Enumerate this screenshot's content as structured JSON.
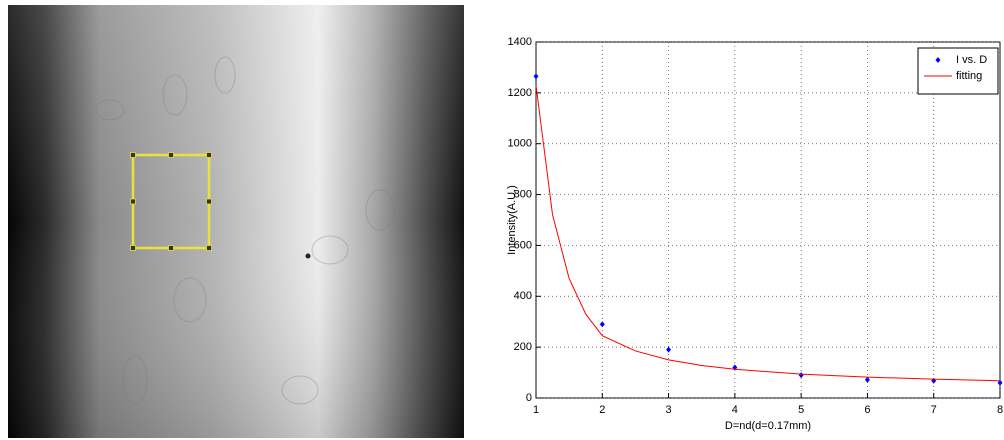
{
  "chart_data": {
    "type": "scatter",
    "xlabel": "D=nd(d=0.17mm)",
    "ylabel": "Intensity(A.U.)",
    "xlim": [
      1,
      8
    ],
    "ylim": [
      0,
      1400
    ],
    "xticks": [
      1,
      2,
      3,
      4,
      5,
      6,
      7,
      8
    ],
    "yticks": [
      0,
      200,
      400,
      600,
      800,
      1000,
      1200,
      1400
    ],
    "grid": true,
    "legend": "top-right",
    "series": [
      {
        "name": "I vs. D",
        "color": "#0000ff",
        "mode": "markers",
        "x": [
          1,
          2,
          3,
          4,
          5,
          6,
          7,
          8
        ],
        "values": [
          1265,
          290,
          190,
          120,
          90,
          72,
          68,
          60
        ]
      },
      {
        "name": "fitting",
        "color": "#ff0000",
        "mode": "line",
        "x": [
          1,
          1.25,
          1.5,
          1.75,
          2,
          2.5,
          3,
          3.5,
          4,
          5,
          6,
          7,
          8
        ],
        "values": [
          1230,
          720,
          470,
          330,
          245,
          185,
          150,
          128,
          113,
          94,
          82,
          74,
          68
        ]
      }
    ]
  }
}
